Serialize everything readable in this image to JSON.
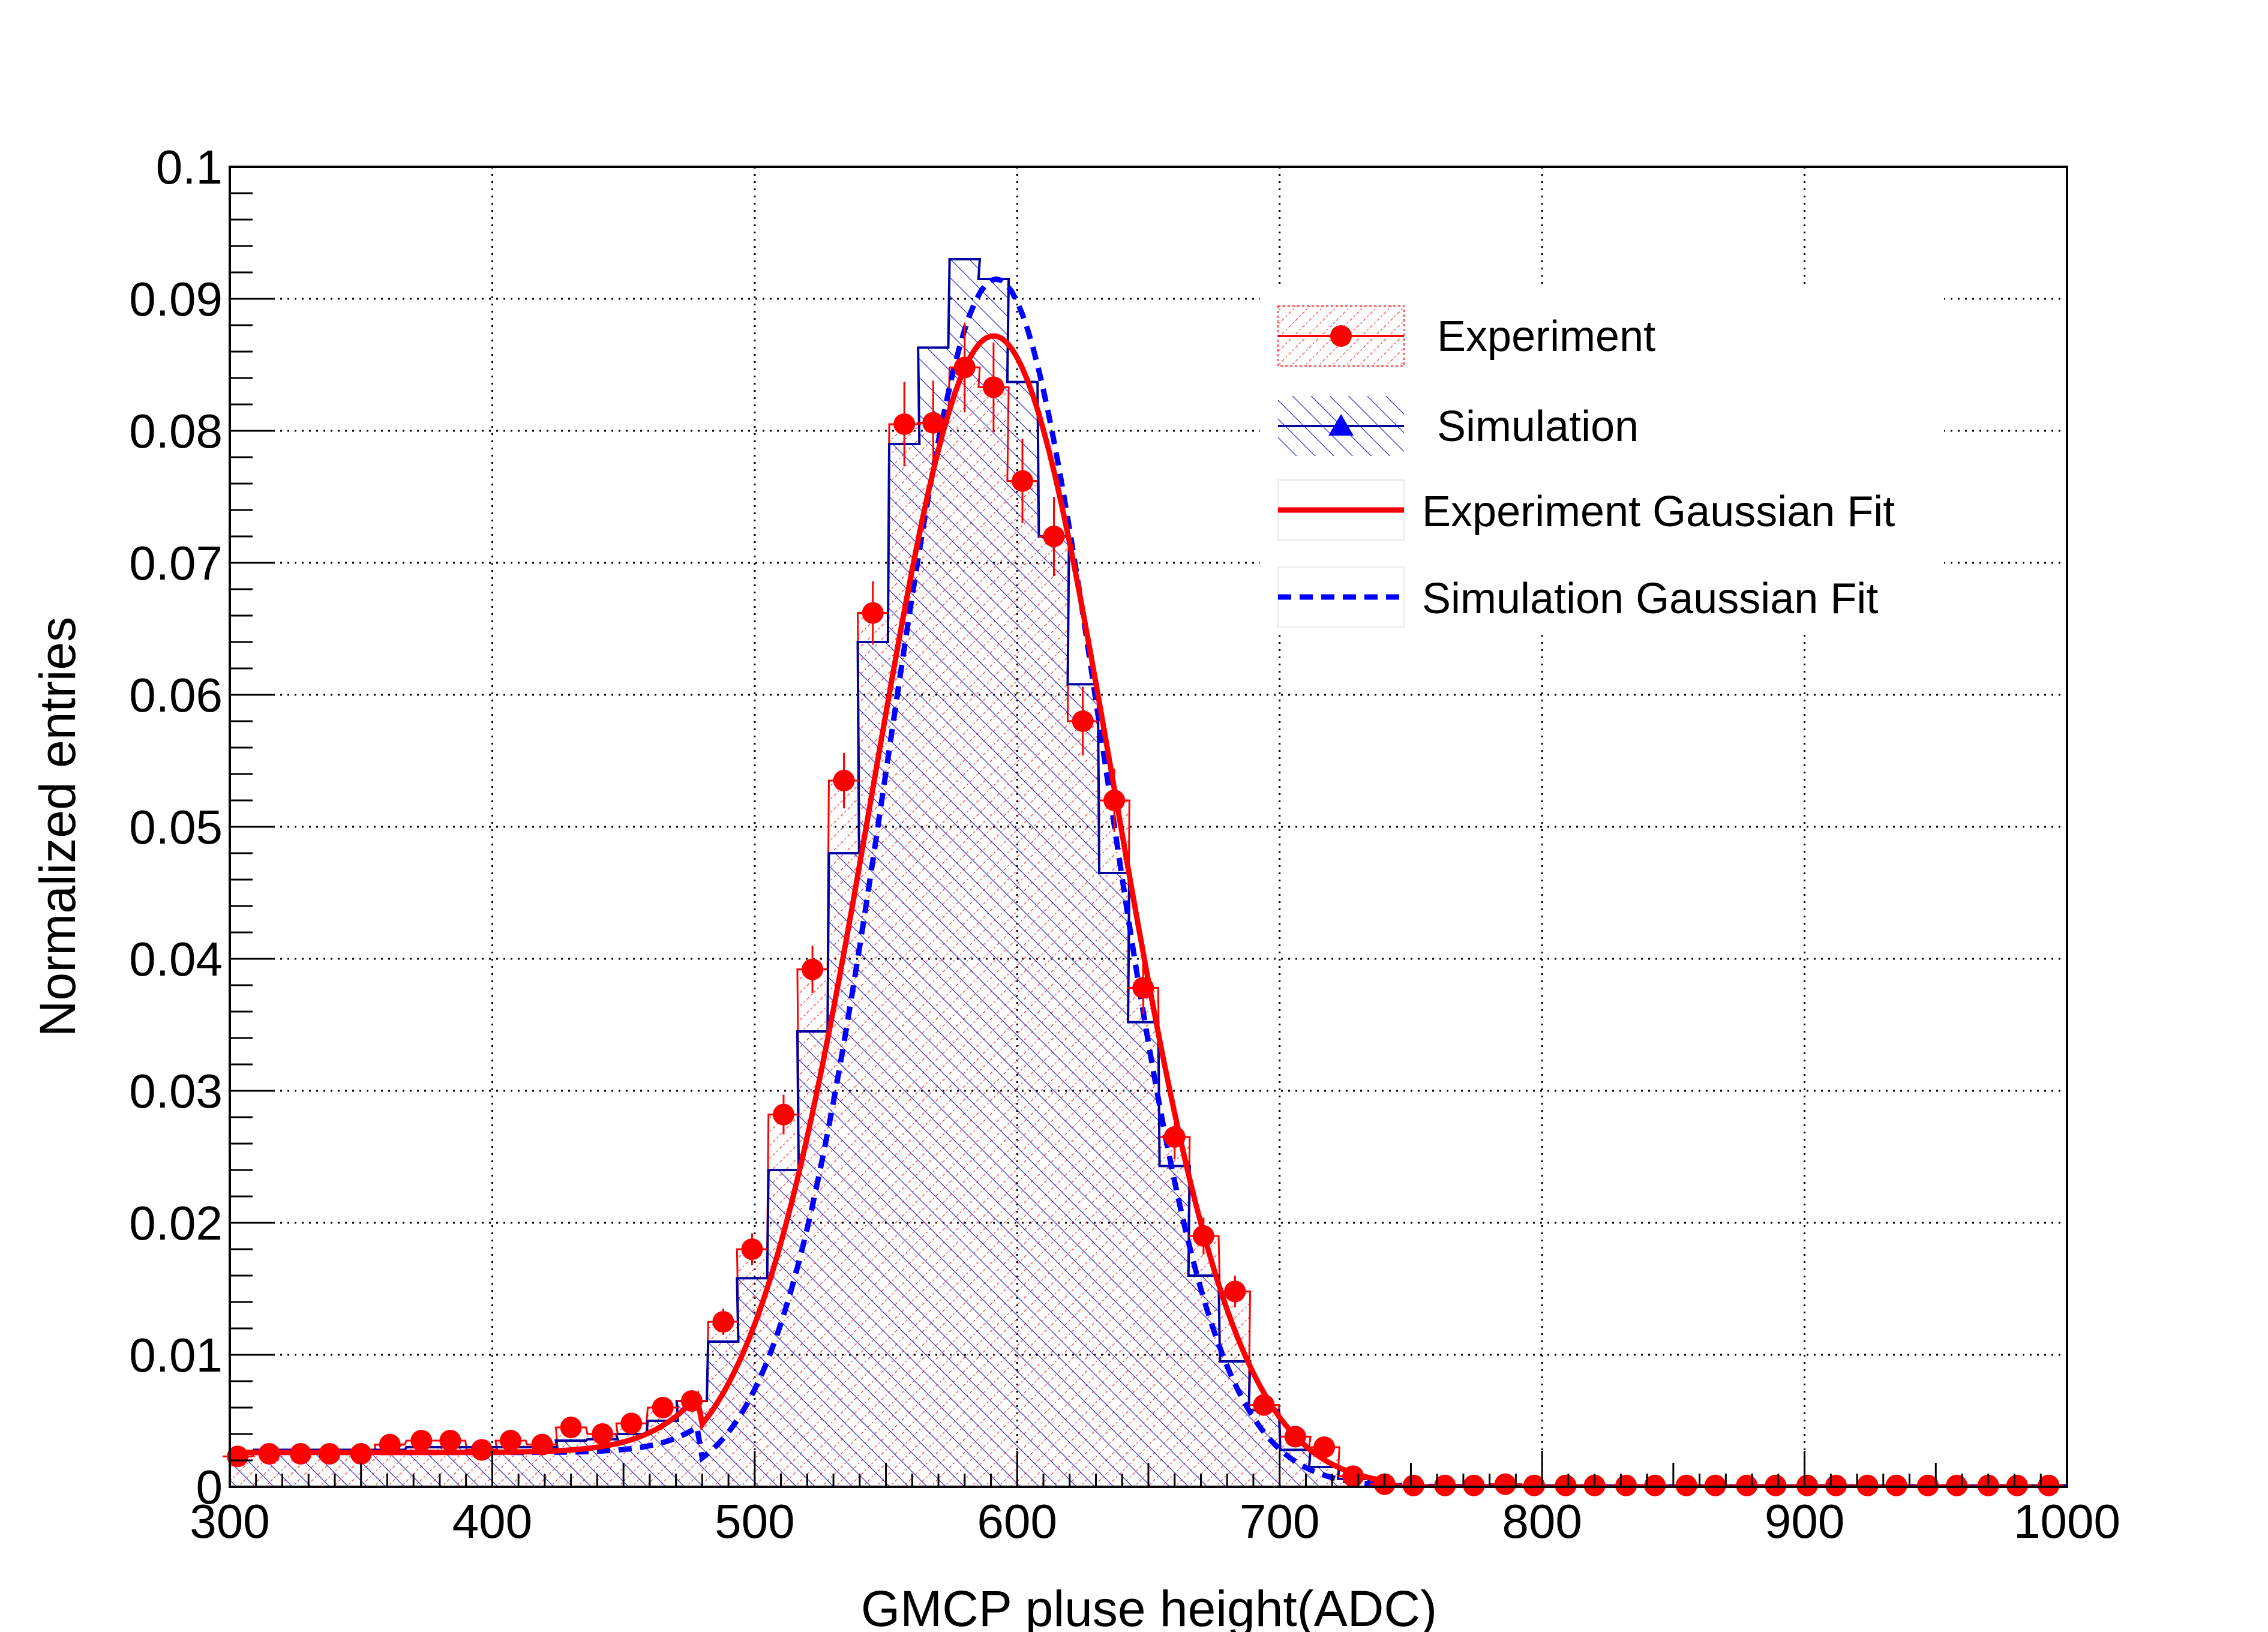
{
  "chart_data": {
    "type": "histogram",
    "xlabel": "GMCP pluse height(ADC)",
    "ylabel": "Normalized entries",
    "xlim": [
      300,
      1000
    ],
    "ylim": [
      0,
      0.1
    ],
    "x_ticks": [
      "300",
      "400",
      "500",
      "600",
      "700",
      "800",
      "900",
      "1000"
    ],
    "y_ticks": [
      "0",
      "0.01",
      "0.02",
      "0.03",
      "0.04",
      "0.05",
      "0.06",
      "0.07",
      "0.08",
      "0.09",
      "0.1"
    ],
    "grid": true,
    "legend_position": "top-right",
    "bin_width": 11.5,
    "series": [
      {
        "name": "Experiment",
        "kind": "points-with-error-bars-and-hatched-histogram",
        "color": "#ff0000",
        "x": [
          303,
          315,
          327,
          338,
          350,
          361,
          373,
          384,
          396,
          407,
          419,
          430,
          442,
          453,
          465,
          476,
          488,
          499,
          511,
          522,
          534,
          545,
          557,
          568,
          580,
          591,
          602,
          614,
          625,
          637,
          648,
          660,
          671,
          683,
          694,
          706,
          717,
          728,
          740,
          751,
          763,
          774,
          786,
          797,
          809,
          820,
          832,
          843,
          855,
          866,
          878,
          889,
          901,
          912,
          924,
          935,
          947,
          958,
          970,
          981,
          993
        ],
        "y": [
          0.0023,
          0.0025,
          0.0025,
          0.0025,
          0.0025,
          0.0032,
          0.0035,
          0.0035,
          0.0028,
          0.0035,
          0.0032,
          0.0045,
          0.004,
          0.0048,
          0.006,
          0.0065,
          0.0125,
          0.018,
          0.0282,
          0.0392,
          0.0535,
          0.0662,
          0.0805,
          0.0806,
          0.0848,
          0.0833,
          0.0762,
          0.072,
          0.058,
          0.052,
          0.0378,
          0.0265,
          0.019,
          0.0148,
          0.0062,
          0.0038,
          0.003,
          0.0008,
          0.0002,
          0.0001,
          0.0001,
          0.0001,
          0.0002,
          0.0001,
          0.0001,
          0.0001,
          0.0001,
          0.0001,
          0.0001,
          0.0001,
          0.0001,
          0.0001,
          0.0001,
          0.0001,
          0.0001,
          0.0001,
          0.0001,
          0.0001,
          0.0001,
          0.0001,
          0.0001
        ],
        "err": [
          0.0004,
          0.0004,
          0.0004,
          0.0004,
          0.0004,
          0.0005,
          0.0005,
          0.0005,
          0.0005,
          0.0005,
          0.0005,
          0.0006,
          0.0006,
          0.0006,
          0.0007,
          0.0007,
          0.001,
          0.0012,
          0.0015,
          0.0018,
          0.0021,
          0.0024,
          0.0032,
          0.0032,
          0.0034,
          0.0034,
          0.0032,
          0.003,
          0.0026,
          0.0024,
          0.002,
          0.0017,
          0.0014,
          0.0012,
          0.0008,
          0.0006,
          0.0005,
          0.0003,
          0.0002,
          0.0001,
          0.0001,
          0.0001,
          0.0001,
          0.0001,
          0.0001,
          0.0001,
          0.0001,
          0.0001,
          0.0001,
          0.0001,
          0.0001,
          0.0001,
          0.0001,
          0.0001,
          0.0001,
          0.0001,
          0.0001,
          0.0001,
          0.0001,
          0.0001,
          0.0001
        ]
      },
      {
        "name": "Simulation",
        "kind": "hatched-histogram",
        "color": "#0000a0",
        "x": [
          303,
          315,
          327,
          338,
          350,
          361,
          373,
          384,
          396,
          407,
          419,
          430,
          442,
          453,
          465,
          476,
          488,
          499,
          511,
          522,
          534,
          545,
          557,
          568,
          580,
          591,
          602,
          614,
          625,
          637,
          648,
          660,
          671,
          683,
          694,
          706,
          717,
          728,
          740,
          751,
          763,
          774,
          786,
          797,
          809,
          820,
          832,
          843,
          855,
          866,
          878,
          889,
          901,
          912,
          924,
          935,
          947,
          958,
          970,
          981,
          993
        ],
        "y": [
          0.0025,
          0.0028,
          0.0028,
          0.0028,
          0.0028,
          0.0028,
          0.003,
          0.003,
          0.003,
          0.003,
          0.003,
          0.0035,
          0.0036,
          0.004,
          0.005,
          0.0065,
          0.011,
          0.0158,
          0.024,
          0.0345,
          0.048,
          0.064,
          0.079,
          0.0863,
          0.093,
          0.0915,
          0.0837,
          0.072,
          0.0608,
          0.0465,
          0.0352,
          0.0243,
          0.016,
          0.0095,
          0.0058,
          0.0028,
          0.0015,
          0.0006,
          0.0002,
          0.0001,
          0.0001,
          0.0001,
          0.0001,
          0.0001,
          0.0001,
          0.0001,
          0.0001,
          0.0001,
          0.0001,
          0.0001,
          0.0001,
          0.0001,
          0.0001,
          0.0001,
          0.0001,
          0.0001,
          0.0001,
          0.0001,
          0.0001,
          0.0001,
          0.0001
        ]
      },
      {
        "name": "Experiment Gaussian Fit",
        "kind": "line",
        "style": "solid",
        "color": "#ff0000",
        "mean": 591,
        "sigma": 46,
        "amplitude": 0.0872,
        "baseline": 0.0026,
        "baseline_end": 480,
        "x_range": [
          300,
          740
        ]
      },
      {
        "name": "Simulation Gaussian Fit",
        "kind": "line",
        "style": "dashed",
        "color": "#0000ff",
        "mean": 592,
        "sigma": 41,
        "amplitude": 0.0915,
        "baseline": 0.0026,
        "baseline_end": 480,
        "x_range": [
          300,
          1000
        ]
      }
    ]
  }
}
